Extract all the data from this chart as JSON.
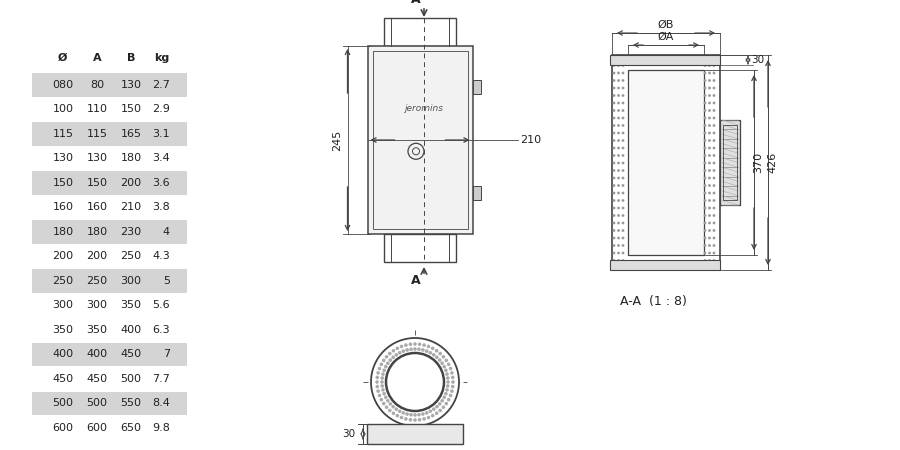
{
  "bg_color": "#ffffff",
  "table_data": {
    "headers": [
      "Ø",
      "A",
      "B",
      "kg"
    ],
    "rows": [
      [
        "080",
        "80",
        "130",
        "2.7"
      ],
      [
        "100",
        "110",
        "150",
        "2.9"
      ],
      [
        "115",
        "115",
        "165",
        "3.1"
      ],
      [
        "130",
        "130",
        "180",
        "3.4"
      ],
      [
        "150",
        "150",
        "200",
        "3.6"
      ],
      [
        "160",
        "160",
        "210",
        "3.8"
      ],
      [
        "180",
        "180",
        "230",
        "4"
      ],
      [
        "200",
        "200",
        "250",
        "4.3"
      ],
      [
        "250",
        "250",
        "300",
        "5"
      ],
      [
        "300",
        "300",
        "350",
        "5.6"
      ],
      [
        "350",
        "350",
        "400",
        "6.3"
      ],
      [
        "400",
        "400",
        "450",
        "7"
      ],
      [
        "450",
        "450",
        "500",
        "7.7"
      ],
      [
        "500",
        "500",
        "550",
        "8.4"
      ],
      [
        "600",
        "600",
        "650",
        "9.8"
      ]
    ],
    "shaded_rows": [
      0,
      2,
      4,
      6,
      8,
      11,
      13
    ],
    "shade_color": "#d4d4d4",
    "text_color": "#222222",
    "line_color": "#444444"
  }
}
